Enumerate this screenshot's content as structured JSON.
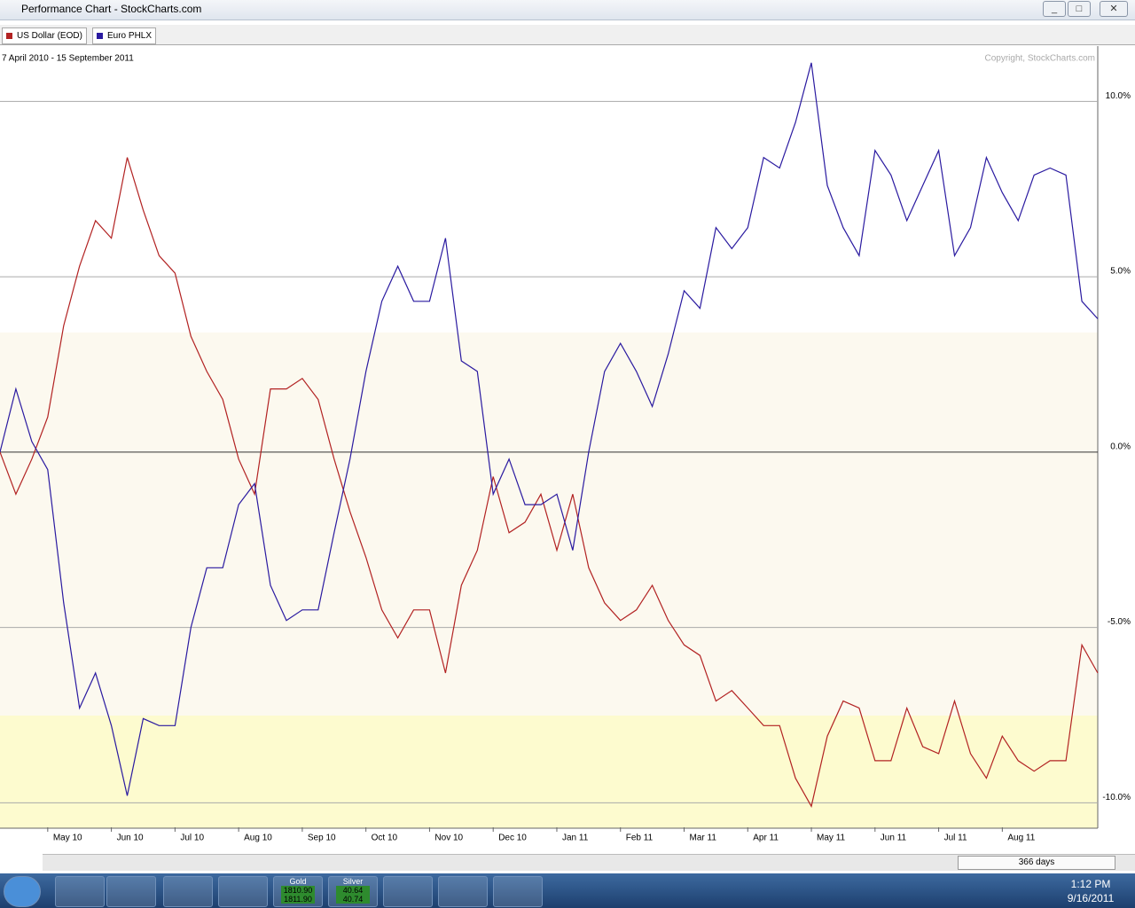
{
  "window": {
    "title": "Performance Chart - StockCharts.com"
  },
  "chart_data": {
    "type": "line",
    "subtitle": "7 April 2010 - 15 September 2011",
    "annotation": "Copyright, StockCharts.com",
    "categories": [
      null,
      null,
      null,
      "May 10",
      null,
      null,
      null,
      "Jun 10",
      null,
      null,
      null,
      "Jul 10",
      null,
      null,
      null,
      "Aug 10",
      null,
      null,
      null,
      "Sep 10",
      null,
      null,
      null,
      "Oct 10",
      null,
      null,
      null,
      "Nov 10",
      null,
      null,
      null,
      "Dec 10",
      null,
      null,
      null,
      "Jan 11",
      null,
      null,
      null,
      "Feb 11",
      null,
      null,
      null,
      "Mar 11",
      null,
      null,
      null,
      "Apr 11",
      null,
      null,
      null,
      "May 11",
      null,
      null,
      null,
      "Jun 11",
      null,
      null,
      null,
      "Jul 11",
      null,
      null,
      null,
      "Aug 11",
      null,
      null,
      null,
      null,
      null,
      null
    ],
    "series": [
      {
        "name": "US Dollar (EOD)",
        "color": "#b22222",
        "values": [
          0,
          -1.2,
          -0.2,
          1.0,
          3.6,
          5.3,
          6.6,
          6.1,
          8.4,
          6.9,
          5.6,
          5.1,
          3.3,
          2.3,
          1.5,
          -0.2,
          -1.2,
          1.8,
          1.8,
          2.1,
          1.5,
          -0.2,
          -1.7,
          -3.0,
          -4.5,
          -5.3,
          -4.5,
          -4.5,
          -6.3,
          -3.8,
          -2.8,
          -0.7,
          -2.3,
          -2.0,
          -1.2,
          -2.8,
          -1.2,
          -3.3,
          -4.3,
          -4.8,
          -4.5,
          -3.8,
          -4.8,
          -5.5,
          -5.8,
          -7.1,
          -6.8,
          -7.3,
          -7.8,
          -7.8,
          -9.3,
          -10.1,
          -8.1,
          -7.1,
          -7.3,
          -8.8,
          -8.8,
          -7.3,
          -8.4,
          -8.6,
          -7.1,
          -8.6,
          -9.3,
          -8.1,
          -8.8,
          -9.1,
          -8.8,
          -8.8,
          -5.5,
          -6.3
        ]
      },
      {
        "name": "Euro PHLX",
        "color": "#2a1aa0",
        "values": [
          0,
          1.8,
          0.3,
          -0.5,
          -4.3,
          -7.3,
          -6.3,
          -7.8,
          -9.8,
          -7.6,
          -7.8,
          -7.8,
          -5.0,
          -3.3,
          -3.3,
          -1.5,
          -0.9,
          -3.8,
          -4.8,
          -4.5,
          -4.5,
          -2.3,
          -0.2,
          2.3,
          4.3,
          5.3,
          4.3,
          4.3,
          6.1,
          2.6,
          2.3,
          -1.2,
          -0.2,
          -1.5,
          -1.5,
          -1.2,
          -2.8,
          0,
          2.3,
          3.1,
          2.3,
          1.3,
          2.8,
          4.6,
          4.1,
          6.4,
          5.8,
          6.4,
          8.4,
          8.1,
          9.4,
          11.1,
          7.6,
          6.4,
          5.6,
          8.6,
          7.9,
          6.6,
          7.6,
          8.6,
          5.6,
          6.4,
          8.4,
          7.4,
          6.6,
          7.9,
          8.1,
          7.9,
          4.3,
          3.8
        ]
      }
    ],
    "ylim": [
      -10.7,
      11.5
    ],
    "yticks": [
      {
        "value": 10,
        "label": "10.0%"
      },
      {
        "value": 5,
        "label": "5.0%"
      },
      {
        "value": 0,
        "label": "0.0%"
      },
      {
        "value": -5,
        "label": "-5.0%"
      },
      {
        "value": -10,
        "label": "-10.0%"
      }
    ],
    "grid": true
  },
  "scrollbar": {
    "label": "366 days"
  },
  "taskbar": {
    "gold": {
      "label": "Gold",
      "bid": "1810.90",
      "ask": "1811.90"
    },
    "silver": {
      "label": "Silver",
      "bid": "40.64",
      "ask": "40.74"
    },
    "time": "1:12 PM",
    "date": "9/16/2011"
  }
}
